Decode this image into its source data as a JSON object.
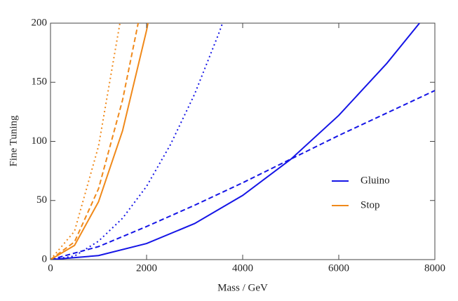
{
  "chart_data": {
    "type": "line",
    "xlabel": "Mass / GeV",
    "ylabel": "Fine Tuning",
    "xlim": [
      0,
      8000
    ],
    "ylim": [
      0,
      200
    ],
    "xticks": [
      0,
      2000,
      4000,
      6000,
      8000
    ],
    "yticks": [
      0,
      50,
      100,
      150,
      200
    ],
    "legend": "right",
    "series": [
      {
        "name": "Gluino",
        "color": "#1515e6",
        "dash": "solid",
        "x": [
          0,
          1000,
          2000,
          3000,
          4000,
          5000,
          6000,
          7000,
          7680
        ],
        "values": [
          0,
          3.4,
          13.6,
          30.5,
          54.3,
          84.8,
          122,
          166,
          200
        ]
      },
      {
        "color": "#1515e6",
        "dash": "dashed",
        "x": [
          0,
          1000,
          2000,
          3000,
          4000,
          5000,
          6000,
          7000,
          8000
        ],
        "values": [
          0,
          11,
          28,
          46,
          65,
          85,
          105,
          124,
          143
        ]
      },
      {
        "color": "#1515e6",
        "dash": "dotted",
        "x": [
          0,
          500,
          1000,
          1500,
          2000,
          2500,
          3000,
          3500,
          3580
        ],
        "values": [
          0,
          3,
          15.6,
          35,
          62,
          97.5,
          140,
          191,
          200
        ]
      },
      {
        "name": "Stop",
        "color": "#f0891a",
        "dash": "solid",
        "x": [
          0,
          500,
          1000,
          1500,
          2000,
          2029
        ],
        "values": [
          0,
          12,
          49,
          109,
          194,
          200
        ]
      },
      {
        "color": "#f0891a",
        "dash": "dashed",
        "x": [
          0,
          500,
          1000,
          1500,
          1825
        ],
        "values": [
          0,
          15,
          60,
          135,
          200
        ]
      },
      {
        "color": "#f0891a",
        "dash": "dotted",
        "x": [
          0,
          500,
          1000,
          1445
        ],
        "values": [
          0,
          24,
          96,
          200
        ]
      }
    ]
  }
}
